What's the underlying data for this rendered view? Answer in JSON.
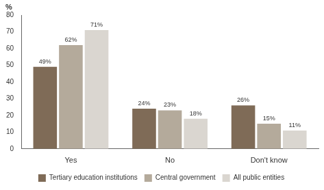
{
  "chart_data": {
    "type": "bar",
    "y_label": "%",
    "categories": [
      "Yes",
      "No",
      "Don't know"
    ],
    "series": [
      {
        "name": "Tertiary education institutions",
        "color": "#7f6b57",
        "values": [
          49,
          24,
          26
        ],
        "value_labels": [
          "49%",
          "24%",
          "26%"
        ]
      },
      {
        "name": "Central government",
        "color": "#b4aa9b",
        "values": [
          62,
          23,
          15
        ],
        "value_labels": [
          "62%",
          "23%",
          "15%"
        ]
      },
      {
        "name": "All public entities",
        "color": "#dad6d0",
        "values": [
          71,
          18,
          11
        ],
        "value_labels": [
          "71%",
          "18%",
          "11%"
        ]
      }
    ],
    "ylim": [
      0,
      80
    ],
    "yticks": [
      0,
      10,
      20,
      30,
      40,
      50,
      60,
      70,
      80
    ],
    "grid": false,
    "legend": "bottom",
    "data_labels": true
  }
}
